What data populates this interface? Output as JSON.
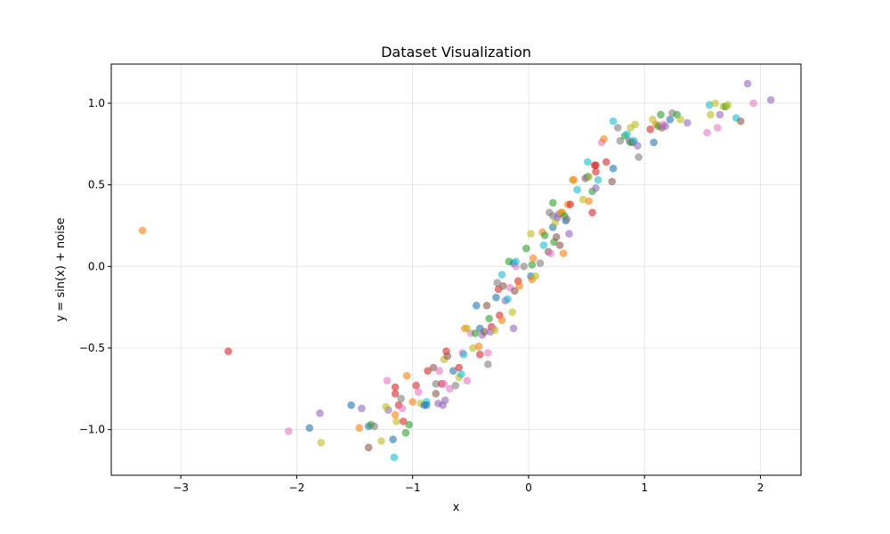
{
  "chart_data": {
    "type": "scatter",
    "title": "Dataset Visualization",
    "xlabel": "x",
    "ylabel": "y = sin(x) + noise",
    "xlim": [
      -3.6,
      2.35
    ],
    "ylim": [
      -1.28,
      1.24
    ],
    "xticks": [
      -3,
      -2,
      -1,
      0,
      1,
      2
    ],
    "yticks": [
      -1.0,
      -0.5,
      0.0,
      0.5,
      1.0
    ],
    "xtick_labels": [
      "−3",
      "−2",
      "−1",
      "0",
      "1",
      "2"
    ],
    "ytick_labels": [
      "−1.0",
      "−0.5",
      "0.0",
      "0.5",
      "1.0"
    ],
    "grid": true,
    "marker_alpha": 0.6,
    "palette": [
      "#1f77b4",
      "#ff7f0e",
      "#2ca02c",
      "#d62728",
      "#9467bd",
      "#8c564b",
      "#e377c2",
      "#7f7f7f",
      "#bcbd22",
      "#17becf"
    ],
    "points": [
      [
        -3.33,
        0.22,
        1
      ],
      [
        -2.59,
        -0.52,
        3
      ],
      [
        -2.07,
        -1.01,
        6
      ],
      [
        -1.89,
        -0.99,
        0
      ],
      [
        -1.8,
        -0.9,
        4
      ],
      [
        -1.79,
        -1.08,
        8
      ],
      [
        -1.53,
        -0.85,
        0
      ],
      [
        -1.44,
        -0.87,
        4
      ],
      [
        -1.46,
        -0.99,
        1
      ],
      [
        -1.38,
        -0.98,
        0
      ],
      [
        -1.36,
        -0.97,
        2
      ],
      [
        -1.33,
        -0.98,
        7
      ],
      [
        -1.38,
        -1.11,
        5
      ],
      [
        -1.27,
        -1.07,
        8
      ],
      [
        -1.22,
        -0.7,
        6
      ],
      [
        -1.21,
        -0.88,
        4
      ],
      [
        -1.23,
        -0.86,
        8
      ],
      [
        -1.17,
        -1.06,
        0
      ],
      [
        -1.16,
        -1.17,
        9
      ],
      [
        -1.15,
        -0.74,
        3
      ],
      [
        -1.15,
        -0.78,
        3
      ],
      [
        -1.15,
        -0.91,
        1
      ],
      [
        -1.14,
        -0.95,
        8
      ],
      [
        -1.12,
        -0.85,
        3
      ],
      [
        -1.1,
        -0.81,
        7
      ],
      [
        -1.09,
        -0.87,
        6
      ],
      [
        -1.08,
        -0.95,
        3
      ],
      [
        -1.06,
        -1.02,
        2
      ],
      [
        -1.03,
        -0.97,
        2
      ],
      [
        -1.05,
        -0.67,
        1
      ],
      [
        -1.0,
        -0.83,
        1
      ],
      [
        -0.97,
        -0.73,
        3
      ],
      [
        -0.95,
        -0.77,
        6
      ],
      [
        -0.93,
        -0.84,
        8
      ],
      [
        -0.9,
        -0.85,
        0
      ],
      [
        -0.88,
        -0.83,
        9
      ],
      [
        -0.88,
        -0.85,
        0
      ],
      [
        -0.87,
        -0.64,
        3
      ],
      [
        -0.82,
        -0.62,
        5
      ],
      [
        -0.8,
        -0.72,
        7
      ],
      [
        -0.8,
        -0.78,
        5
      ],
      [
        -0.78,
        -0.84,
        4
      ],
      [
        -0.77,
        -0.64,
        6
      ],
      [
        -0.75,
        -0.72,
        3
      ],
      [
        -0.74,
        -0.85,
        4
      ],
      [
        -0.73,
        -0.72,
        6
      ],
      [
        -0.72,
        -0.82,
        4
      ],
      [
        -0.73,
        -0.57,
        8
      ],
      [
        -0.71,
        -0.52,
        3
      ],
      [
        -0.7,
        -0.55,
        5
      ],
      [
        -0.68,
        -0.75,
        6
      ],
      [
        -0.65,
        -0.64,
        0
      ],
      [
        -0.63,
        -0.73,
        7
      ],
      [
        -0.6,
        -0.62,
        3
      ],
      [
        -0.6,
        -0.68,
        8
      ],
      [
        -0.58,
        -0.66,
        9
      ],
      [
        -0.57,
        -0.53,
        6
      ],
      [
        -0.56,
        -0.54,
        9
      ],
      [
        -0.55,
        -0.38,
        1
      ],
      [
        -0.53,
        -0.7,
        6
      ],
      [
        -0.53,
        -0.38,
        8
      ],
      [
        -0.5,
        -0.41,
        6
      ],
      [
        -0.48,
        -0.5,
        8
      ],
      [
        -0.46,
        -0.41,
        2
      ],
      [
        -0.45,
        -0.24,
        0
      ],
      [
        -0.43,
        -0.49,
        1
      ],
      [
        -0.42,
        -0.38,
        0
      ],
      [
        -0.42,
        -0.54,
        3
      ],
      [
        -0.4,
        -0.42,
        4
      ],
      [
        -0.38,
        -0.4,
        5
      ],
      [
        -0.36,
        -0.24,
        5
      ],
      [
        -0.35,
        -0.6,
        7
      ],
      [
        -0.35,
        -0.53,
        6
      ],
      [
        -0.34,
        -0.32,
        2
      ],
      [
        -0.33,
        -0.4,
        4
      ],
      [
        -0.32,
        -0.37,
        3
      ],
      [
        -0.31,
        -0.38,
        6
      ],
      [
        -0.29,
        -0.39,
        8
      ],
      [
        -0.28,
        -0.19,
        0
      ],
      [
        -0.27,
        -0.1,
        7
      ],
      [
        -0.26,
        -0.14,
        3
      ],
      [
        -0.25,
        -0.3,
        3
      ],
      [
        -0.23,
        -0.33,
        1
      ],
      [
        -0.23,
        -0.05,
        9
      ],
      [
        -0.22,
        -0.12,
        5
      ],
      [
        -0.2,
        -0.21,
        4
      ],
      [
        -0.18,
        -0.2,
        9
      ],
      [
        -0.17,
        0.03,
        2
      ],
      [
        -0.16,
        -0.13,
        6
      ],
      [
        -0.14,
        -0.28,
        8
      ],
      [
        -0.13,
        -0.38,
        4
      ],
      [
        -0.13,
        0.02,
        0
      ],
      [
        -0.12,
        -0.15,
        5
      ],
      [
        -0.11,
        0.0,
        6
      ],
      [
        -0.11,
        0.03,
        9
      ],
      [
        -0.09,
        -0.09,
        3
      ],
      [
        -0.08,
        -0.12,
        1
      ],
      [
        -0.04,
        0.0,
        7
      ],
      [
        -0.02,
        0.11,
        2
      ],
      [
        0.02,
        0.2,
        8
      ],
      [
        0.02,
        -0.06,
        0
      ],
      [
        0.03,
        -0.08,
        1
      ],
      [
        0.03,
        0.01,
        2
      ],
      [
        0.04,
        0.05,
        1
      ],
      [
        0.06,
        -0.06,
        8
      ],
      [
        0.1,
        0.02,
        7
      ],
      [
        0.12,
        0.21,
        1
      ],
      [
        0.13,
        0.13,
        9
      ],
      [
        0.14,
        0.19,
        2
      ],
      [
        0.17,
        0.09,
        5
      ],
      [
        0.18,
        0.33,
        7
      ],
      [
        0.19,
        0.08,
        6
      ],
      [
        0.21,
        0.24,
        0
      ],
      [
        0.21,
        0.39,
        2
      ],
      [
        0.21,
        0.31,
        7
      ],
      [
        0.22,
        0.15,
        2
      ],
      [
        0.23,
        0.27,
        8
      ],
      [
        0.24,
        0.18,
        5
      ],
      [
        0.25,
        0.3,
        4
      ],
      [
        0.26,
        0.32,
        4
      ],
      [
        0.27,
        0.13,
        5
      ],
      [
        0.28,
        0.33,
        8
      ],
      [
        0.29,
        0.33,
        1
      ],
      [
        0.3,
        0.08,
        1
      ],
      [
        0.31,
        0.31,
        2
      ],
      [
        0.32,
        0.28,
        0
      ],
      [
        0.33,
        0.29,
        7
      ],
      [
        0.34,
        0.38,
        1
      ],
      [
        0.35,
        0.2,
        4
      ],
      [
        0.36,
        0.38,
        3
      ],
      [
        0.38,
        0.53,
        8
      ],
      [
        0.39,
        0.53,
        1
      ],
      [
        0.42,
        0.47,
        9
      ],
      [
        0.47,
        0.41,
        8
      ],
      [
        0.49,
        0.54,
        5
      ],
      [
        0.51,
        0.55,
        0
      ],
      [
        0.52,
        0.55,
        8
      ],
      [
        0.51,
        0.64,
        9
      ],
      [
        0.52,
        0.4,
        1
      ],
      [
        0.55,
        0.33,
        3
      ],
      [
        0.55,
        0.46,
        2
      ],
      [
        0.57,
        0.62,
        3
      ],
      [
        0.58,
        0.58,
        3
      ],
      [
        0.58,
        0.62,
        3
      ],
      [
        0.58,
        0.48,
        4
      ],
      [
        0.6,
        0.53,
        9
      ],
      [
        0.63,
        0.76,
        6
      ],
      [
        0.65,
        0.78,
        1
      ],
      [
        0.67,
        0.64,
        3
      ],
      [
        0.72,
        0.52,
        5
      ],
      [
        0.73,
        0.6,
        0
      ],
      [
        0.73,
        0.89,
        9
      ],
      [
        0.77,
        0.85,
        7
      ],
      [
        0.79,
        0.77,
        7
      ],
      [
        0.83,
        0.8,
        2
      ],
      [
        0.85,
        0.81,
        9
      ],
      [
        0.87,
        0.77,
        4
      ],
      [
        0.88,
        0.85,
        8
      ],
      [
        0.88,
        0.76,
        2
      ],
      [
        0.9,
        0.76,
        5
      ],
      [
        0.91,
        0.77,
        9
      ],
      [
        0.92,
        0.87,
        8
      ],
      [
        0.94,
        0.74,
        4
      ],
      [
        0.95,
        0.67,
        7
      ],
      [
        1.05,
        0.84,
        3
      ],
      [
        1.07,
        0.9,
        8
      ],
      [
        1.08,
        0.76,
        0
      ],
      [
        1.1,
        0.87,
        1
      ],
      [
        1.12,
        0.86,
        2
      ],
      [
        1.14,
        0.93,
        2
      ],
      [
        1.15,
        0.85,
        5
      ],
      [
        1.16,
        0.87,
        6
      ],
      [
        1.18,
        0.86,
        4
      ],
      [
        1.22,
        0.9,
        0
      ],
      [
        1.24,
        0.94,
        7
      ],
      [
        1.28,
        0.93,
        2
      ],
      [
        1.31,
        0.9,
        8
      ],
      [
        1.37,
        0.88,
        4
      ],
      [
        1.54,
        0.82,
        6
      ],
      [
        1.56,
        0.99,
        9
      ],
      [
        1.57,
        0.93,
        8
      ],
      [
        1.61,
        1.0,
        8
      ],
      [
        1.63,
        0.85,
        6
      ],
      [
        1.65,
        0.93,
        4
      ],
      [
        1.68,
        0.98,
        8
      ],
      [
        1.7,
        0.98,
        2
      ],
      [
        1.72,
        0.99,
        8
      ],
      [
        1.79,
        0.91,
        9
      ],
      [
        1.83,
        0.89,
        5
      ],
      [
        1.89,
        1.12,
        4
      ],
      [
        1.94,
        1.0,
        6
      ],
      [
        2.09,
        1.02,
        4
      ]
    ]
  }
}
